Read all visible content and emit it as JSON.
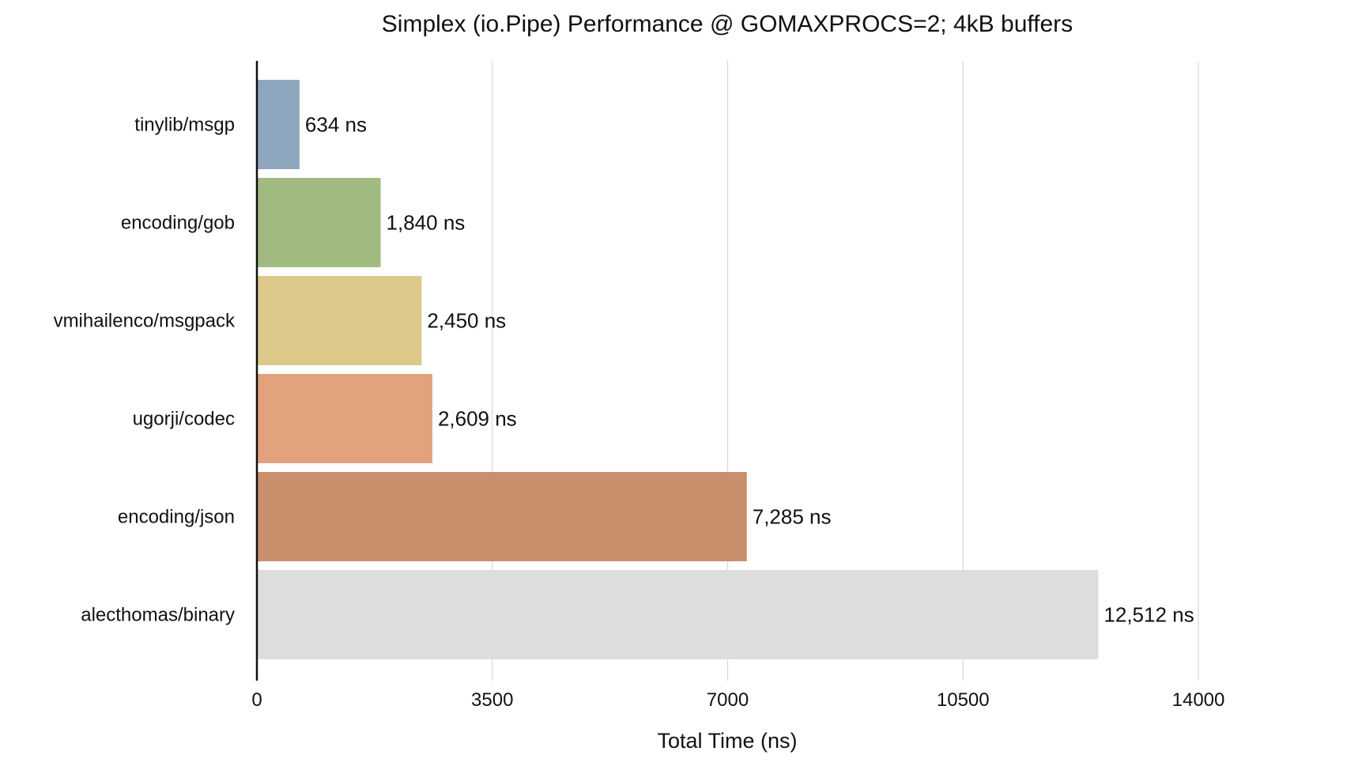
{
  "chart_data": {
    "type": "bar",
    "orientation": "horizontal",
    "title": "Simplex (io.Pipe) Performance @ GOMAXPROCS=2; 4kB buffers",
    "xlabel": "Total Time (ns)",
    "ylabel": "",
    "xlim": [
      0,
      14000
    ],
    "xticks": [
      "0",
      "3500",
      "7000",
      "10500",
      "14000"
    ],
    "xtick_values": [
      0,
      3500,
      7000,
      10500,
      14000
    ],
    "grid": true,
    "legend": "none",
    "categories": [
      "tinylib/msgp",
      "encoding/gob",
      "vmihailenco/msgpack",
      "ugorji/codec",
      "encoding/json",
      "alecthomas/binary"
    ],
    "values": [
      634,
      1840,
      2450,
      2609,
      7285,
      12512
    ],
    "value_labels": [
      "634 ns",
      "1,840 ns",
      "2,450 ns",
      "2,609 ns",
      "7,285 ns",
      "12,512 ns"
    ],
    "colors": [
      "#8fa6bf",
      "#a1ba7f",
      "#dcc98a",
      "#e2a27d",
      "#c98e6c",
      "#dddddd"
    ]
  }
}
